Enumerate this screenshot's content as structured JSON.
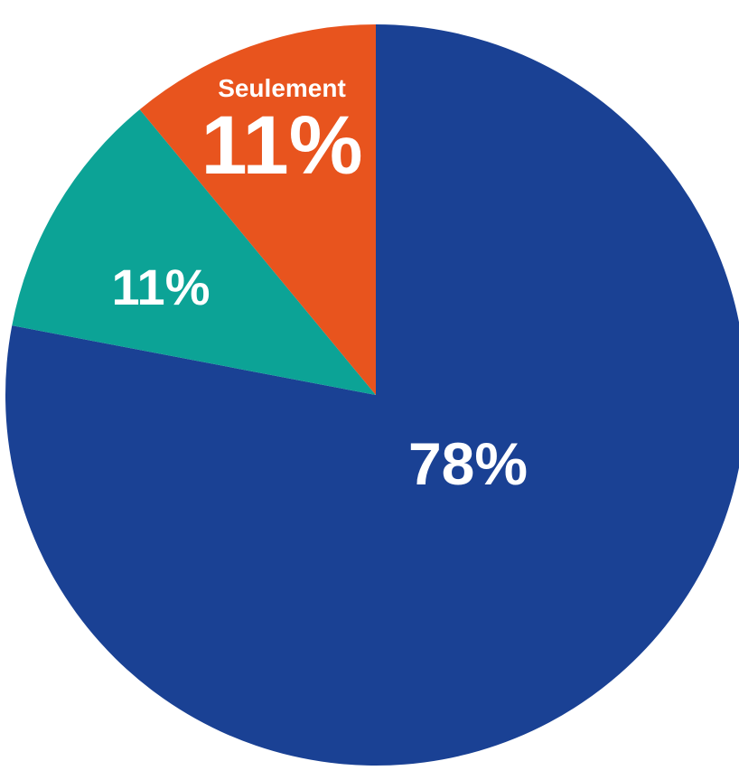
{
  "chart_data": {
    "type": "pie",
    "title": "",
    "slices": [
      {
        "value": 78,
        "label": "78%",
        "prefix": "",
        "color": "#1a4194"
      },
      {
        "value": 11,
        "label": "11%",
        "prefix": "",
        "color": "#0ca396"
      },
      {
        "value": 11,
        "label": "11%",
        "prefix": "Seulement",
        "color": "#e8541e"
      }
    ],
    "start": "12 o'clock",
    "direction": "clockwise",
    "legend": "none"
  }
}
